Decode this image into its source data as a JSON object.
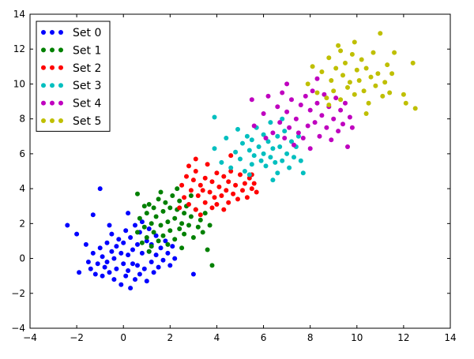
{
  "chart_data": {
    "type": "scatter",
    "title": "",
    "xlabel": "",
    "ylabel": "",
    "xlim": [
      -4,
      14
    ],
    "ylim": [
      -4,
      14
    ],
    "xticks": [
      -4,
      -2,
      0,
      2,
      4,
      6,
      8,
      10,
      12,
      14
    ],
    "yticks": [
      -4,
      -2,
      0,
      2,
      4,
      6,
      8,
      10,
      12,
      14
    ],
    "grid": false,
    "legend_position": "top-left",
    "series": [
      {
        "name": "Set 0",
        "color": "#0000ff",
        "points": [
          [
            -2.4,
            1.9
          ],
          [
            -2.0,
            1.4
          ],
          [
            -1.9,
            -0.8
          ],
          [
            -1.6,
            0.8
          ],
          [
            -1.3,
            2.5
          ],
          [
            -1.0,
            4.0
          ],
          [
            -1.5,
            -0.2
          ],
          [
            -1.4,
            -0.6
          ],
          [
            -1.3,
            0.3
          ],
          [
            -1.2,
            -0.9
          ],
          [
            -1.1,
            -0.3
          ],
          [
            -1.0,
            0.6
          ],
          [
            -0.9,
            -1.0
          ],
          [
            -0.9,
            0.1
          ],
          [
            -0.8,
            -0.5
          ],
          [
            -0.7,
            0.9
          ],
          [
            -0.7,
            -0.2
          ],
          [
            -0.6,
            -0.8
          ],
          [
            -0.5,
            0.4
          ],
          [
            -0.5,
            1.4
          ],
          [
            -0.4,
            -1.2
          ],
          [
            -0.4,
            0.0
          ],
          [
            -0.3,
            0.7
          ],
          [
            -0.3,
            -0.6
          ],
          [
            -0.2,
            1.1
          ],
          [
            -0.1,
            -1.5
          ],
          [
            -0.1,
            0.3
          ],
          [
            0.0,
            -0.3
          ],
          [
            0.0,
            0.9
          ],
          [
            0.1,
            -1.0
          ],
          [
            0.1,
            1.6
          ],
          [
            0.2,
            0.2
          ],
          [
            0.2,
            -0.7
          ],
          [
            0.3,
            1.2
          ],
          [
            0.3,
            -1.7
          ],
          [
            0.4,
            0.5
          ],
          [
            0.4,
            -0.3
          ],
          [
            0.5,
            1.9
          ],
          [
            0.5,
            -1.2
          ],
          [
            0.6,
            0.8
          ],
          [
            0.6,
            -0.4
          ],
          [
            0.7,
            1.5
          ],
          [
            0.7,
            -0.9
          ],
          [
            0.8,
            0.3
          ],
          [
            0.8,
            2.1
          ],
          [
            0.9,
            -0.6
          ],
          [
            1.0,
            1.0
          ],
          [
            1.0,
            -1.3
          ],
          [
            1.1,
            0.4
          ],
          [
            1.1,
            1.7
          ],
          [
            1.2,
            -0.2
          ],
          [
            1.2,
            0.8
          ],
          [
            1.3,
            -0.8
          ],
          [
            1.4,
            0.2
          ],
          [
            1.4,
            1.3
          ],
          [
            1.5,
            -0.5
          ],
          [
            1.6,
            0.6
          ],
          [
            1.7,
            -0.1
          ],
          [
            1.8,
            1.0
          ],
          [
            1.9,
            0.3
          ],
          [
            2.0,
            -0.4
          ],
          [
            2.1,
            0.7
          ],
          [
            2.2,
            0.0
          ],
          [
            3.0,
            -0.9
          ],
          [
            -0.6,
            1.9
          ],
          [
            0.2,
            2.6
          ]
        ]
      },
      {
        "name": "Set 1",
        "color": "#008000",
        "points": [
          [
            0.6,
            3.7
          ],
          [
            0.6,
            1.5
          ],
          [
            0.7,
            2.3
          ],
          [
            0.8,
            0.9
          ],
          [
            0.9,
            1.8
          ],
          [
            1.0,
            2.6
          ],
          [
            1.0,
            1.2
          ],
          [
            1.1,
            3.1
          ],
          [
            1.2,
            2.0
          ],
          [
            1.2,
            0.7
          ],
          [
            1.3,
            2.9
          ],
          [
            1.3,
            1.5
          ],
          [
            1.4,
            2.4
          ],
          [
            1.5,
            1.0
          ],
          [
            1.5,
            3.4
          ],
          [
            1.6,
            1.9
          ],
          [
            1.7,
            2.7
          ],
          [
            1.7,
            1.3
          ],
          [
            1.8,
            3.2
          ],
          [
            1.9,
            2.1
          ],
          [
            1.9,
            0.8
          ],
          [
            2.0,
            2.9
          ],
          [
            2.0,
            1.6
          ],
          [
            2.1,
            3.6
          ],
          [
            2.2,
            2.3
          ],
          [
            2.2,
            1.1
          ],
          [
            2.3,
            2.8
          ],
          [
            2.4,
            1.7
          ],
          [
            2.4,
            3.3
          ],
          [
            2.5,
            2.0
          ],
          [
            2.5,
            0.6
          ],
          [
            2.6,
            2.6
          ],
          [
            2.6,
            1.4
          ],
          [
            2.7,
            3.0
          ],
          [
            2.8,
            1.9
          ],
          [
            2.9,
            2.4
          ],
          [
            3.0,
            1.2
          ],
          [
            3.1,
            2.8
          ],
          [
            3.2,
            1.8
          ],
          [
            3.3,
            2.2
          ],
          [
            3.4,
            1.5
          ],
          [
            3.5,
            2.6
          ],
          [
            3.6,
            0.5
          ],
          [
            3.7,
            1.9
          ],
          [
            3.8,
            -0.4
          ],
          [
            2.3,
            4.0
          ],
          [
            1.6,
            3.8
          ],
          [
            0.9,
            3.0
          ],
          [
            2.9,
            3.6
          ],
          [
            1.1,
            0.4
          ]
        ]
      },
      {
        "name": "Set 2",
        "color": "#ff0000",
        "points": [
          [
            2.4,
            2.9
          ],
          [
            2.5,
            4.2
          ],
          [
            2.6,
            3.5
          ],
          [
            2.7,
            4.7
          ],
          [
            2.8,
            3.1
          ],
          [
            2.8,
            5.3
          ],
          [
            2.9,
            3.9
          ],
          [
            3.0,
            4.5
          ],
          [
            3.1,
            2.8
          ],
          [
            3.1,
            5.0
          ],
          [
            3.2,
            3.6
          ],
          [
            3.3,
            4.2
          ],
          [
            3.3,
            2.5
          ],
          [
            3.4,
            3.9
          ],
          [
            3.5,
            4.6
          ],
          [
            3.5,
            3.2
          ],
          [
            3.6,
            5.4
          ],
          [
            3.7,
            3.8
          ],
          [
            3.8,
            4.4
          ],
          [
            3.8,
            2.9
          ],
          [
            3.9,
            3.5
          ],
          [
            4.0,
            4.9
          ],
          [
            4.0,
            3.1
          ],
          [
            4.1,
            4.1
          ],
          [
            4.2,
            3.6
          ],
          [
            4.3,
            4.7
          ],
          [
            4.3,
            2.8
          ],
          [
            4.4,
            3.9
          ],
          [
            4.5,
            4.4
          ],
          [
            4.5,
            3.2
          ],
          [
            4.6,
            5.0
          ],
          [
            4.7,
            3.7
          ],
          [
            4.8,
            4.2
          ],
          [
            4.9,
            3.4
          ],
          [
            5.0,
            4.8
          ],
          [
            5.1,
            3.9
          ],
          [
            5.2,
            4.3
          ],
          [
            5.3,
            3.5
          ],
          [
            5.4,
            4.6
          ],
          [
            5.5,
            4.0
          ],
          [
            5.6,
            4.3
          ],
          [
            5.7,
            3.8
          ],
          [
            3.1,
            5.7
          ],
          [
            4.6,
            5.9
          ],
          [
            5.5,
            4.8
          ]
        ]
      },
      {
        "name": "Set 3",
        "color": "#00bfbf",
        "points": [
          [
            3.9,
            8.1
          ],
          [
            3.9,
            6.3
          ],
          [
            4.2,
            5.5
          ],
          [
            4.4,
            6.9
          ],
          [
            4.6,
            5.2
          ],
          [
            4.8,
            6.1
          ],
          [
            4.9,
            7.4
          ],
          [
            5.0,
            5.7
          ],
          [
            5.1,
            6.6
          ],
          [
            5.2,
            5.0
          ],
          [
            5.3,
            7.0
          ],
          [
            5.4,
            6.2
          ],
          [
            5.5,
            5.4
          ],
          [
            5.5,
            6.8
          ],
          [
            5.6,
            5.9
          ],
          [
            5.7,
            7.5
          ],
          [
            5.8,
            6.4
          ],
          [
            5.9,
            5.6
          ],
          [
            6.0,
            7.1
          ],
          [
            6.0,
            6.0
          ],
          [
            6.1,
            5.3
          ],
          [
            6.2,
            6.7
          ],
          [
            6.3,
            5.8
          ],
          [
            6.3,
            7.8
          ],
          [
            6.4,
            6.3
          ],
          [
            6.5,
            5.5
          ],
          [
            6.6,
            7.0
          ],
          [
            6.6,
            4.9
          ],
          [
            6.7,
            6.4
          ],
          [
            6.8,
            5.6
          ],
          [
            6.9,
            7.3
          ],
          [
            7.0,
            6.0
          ],
          [
            7.1,
            5.2
          ],
          [
            7.2,
            6.7
          ],
          [
            7.3,
            5.8
          ],
          [
            7.4,
            6.4
          ],
          [
            7.5,
            7.0
          ],
          [
            7.6,
            5.6
          ],
          [
            7.7,
            4.9
          ],
          [
            6.8,
            8.0
          ],
          [
            5.4,
            4.8
          ],
          [
            6.4,
            4.5
          ]
        ]
      },
      {
        "name": "Set 4",
        "color": "#bf00bf",
        "points": [
          [
            5.5,
            9.1
          ],
          [
            5.6,
            7.6
          ],
          [
            6.0,
            8.3
          ],
          [
            6.2,
            9.3
          ],
          [
            6.4,
            7.2
          ],
          [
            6.6,
            8.7
          ],
          [
            6.7,
            7.8
          ],
          [
            6.8,
            9.5
          ],
          [
            6.9,
            6.9
          ],
          [
            7.0,
            8.4
          ],
          [
            7.1,
            7.5
          ],
          [
            7.2,
            9.1
          ],
          [
            7.3,
            6.5
          ],
          [
            7.4,
            8.0
          ],
          [
            7.5,
            7.2
          ],
          [
            7.6,
            8.8
          ],
          [
            7.7,
            6.9
          ],
          [
            7.8,
            9.3
          ],
          [
            7.9,
            7.6
          ],
          [
            8.0,
            8.5
          ],
          [
            8.0,
            6.3
          ],
          [
            8.1,
            9.6
          ],
          [
            8.2,
            7.8
          ],
          [
            8.3,
            8.9
          ],
          [
            8.4,
            7.0
          ],
          [
            8.5,
            8.2
          ],
          [
            8.6,
            9.4
          ],
          [
            8.7,
            7.5
          ],
          [
            8.8,
            8.7
          ],
          [
            8.9,
            6.8
          ],
          [
            9.0,
            8.0
          ],
          [
            9.1,
            9.2
          ],
          [
            9.2,
            7.3
          ],
          [
            9.3,
            8.5
          ],
          [
            9.4,
            7.7
          ],
          [
            9.5,
            8.9
          ],
          [
            9.6,
            6.4
          ],
          [
            9.7,
            8.1
          ],
          [
            9.8,
            7.5
          ],
          [
            8.3,
            10.3
          ],
          [
            7.0,
            10.0
          ],
          [
            6.1,
            6.9
          ]
        ]
      },
      {
        "name": "Set 5",
        "color": "#bfbf00",
        "points": [
          [
            7.9,
            10.0
          ],
          [
            8.1,
            11.0
          ],
          [
            8.3,
            9.5
          ],
          [
            8.5,
            10.7
          ],
          [
            8.7,
            9.2
          ],
          [
            8.8,
            11.5
          ],
          [
            8.9,
            10.2
          ],
          [
            9.0,
            9.6
          ],
          [
            9.1,
            10.9
          ],
          [
            9.2,
            12.2
          ],
          [
            9.3,
            9.1
          ],
          [
            9.4,
            10.5
          ],
          [
            9.5,
            11.2
          ],
          [
            9.6,
            9.8
          ],
          [
            9.7,
            10.1
          ],
          [
            9.8,
            11.7
          ],
          [
            9.9,
            9.4
          ],
          [
            10.0,
            10.8
          ],
          [
            10.1,
            10.2
          ],
          [
            10.2,
            11.4
          ],
          [
            10.3,
            9.6
          ],
          [
            10.4,
            10.9
          ],
          [
            10.5,
            8.9
          ],
          [
            10.6,
            10.4
          ],
          [
            10.7,
            11.8
          ],
          [
            10.8,
            9.9
          ],
          [
            10.9,
            10.6
          ],
          [
            11.0,
            12.9
          ],
          [
            11.1,
            9.3
          ],
          [
            11.2,
            10.1
          ],
          [
            11.3,
            11.1
          ],
          [
            11.4,
            9.5
          ],
          [
            11.5,
            10.6
          ],
          [
            11.6,
            11.8
          ],
          [
            12.0,
            9.4
          ],
          [
            12.1,
            8.9
          ],
          [
            12.4,
            11.2
          ],
          [
            12.5,
            8.6
          ],
          [
            9.9,
            12.4
          ],
          [
            10.4,
            8.3
          ],
          [
            8.8,
            8.8
          ],
          [
            9.3,
            11.9
          ]
        ]
      }
    ]
  }
}
